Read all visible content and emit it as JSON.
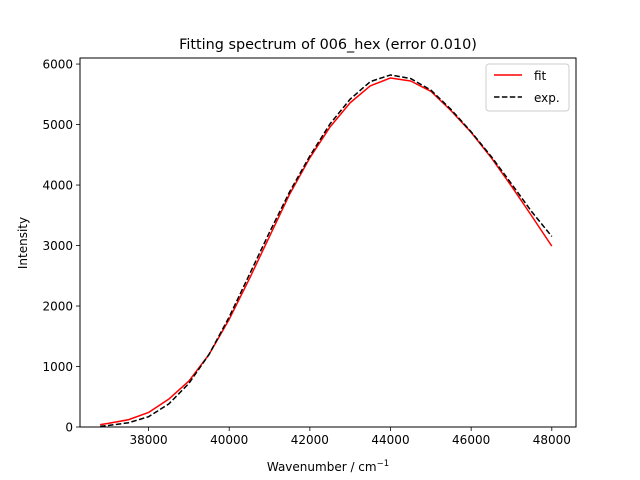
{
  "chart_data": {
    "type": "line",
    "title": "Fitting spectrum of 006_hex (error 0.010)",
    "xlabel": "Wavenumber / cm",
    "xlabel_superscript": "−1",
    "ylabel": "Intensity",
    "xlim": [
      36300,
      48600
    ],
    "ylim": [
      0,
      6100
    ],
    "xticks": [
      38000,
      40000,
      42000,
      44000,
      46000,
      48000
    ],
    "yticks": [
      0,
      1000,
      2000,
      3000,
      4000,
      5000,
      6000
    ],
    "grid": false,
    "legend": "top-right",
    "series": [
      {
        "name": "fit",
        "color": "#ff0000",
        "style": "solid",
        "x": [
          36800,
          37000,
          37500,
          38000,
          38500,
          39000,
          39500,
          40000,
          40500,
          41000,
          41500,
          42000,
          42500,
          43000,
          43500,
          44000,
          44500,
          45000,
          45500,
          46000,
          46500,
          47000,
          47500,
          48000
        ],
        "y": [
          40,
          60,
          120,
          240,
          460,
          760,
          1200,
          1780,
          2450,
          3150,
          3850,
          4450,
          4960,
          5360,
          5640,
          5770,
          5720,
          5550,
          5230,
          4870,
          4450,
          3980,
          3490,
          2990
        ]
      },
      {
        "name": "exp.",
        "color": "#000000",
        "style": "dashed",
        "x": [
          36800,
          37000,
          37500,
          38000,
          38500,
          39000,
          39500,
          40000,
          40500,
          41000,
          41500,
          42000,
          42500,
          43000,
          43500,
          44000,
          44500,
          45000,
          45500,
          46000,
          46500,
          47000,
          47500,
          48000
        ],
        "y": [
          10,
          25,
          70,
          170,
          380,
          720,
          1200,
          1820,
          2520,
          3220,
          3890,
          4480,
          5010,
          5420,
          5710,
          5820,
          5760,
          5570,
          5250,
          4880,
          4470,
          4020,
          3560,
          3150
        ]
      }
    ]
  }
}
